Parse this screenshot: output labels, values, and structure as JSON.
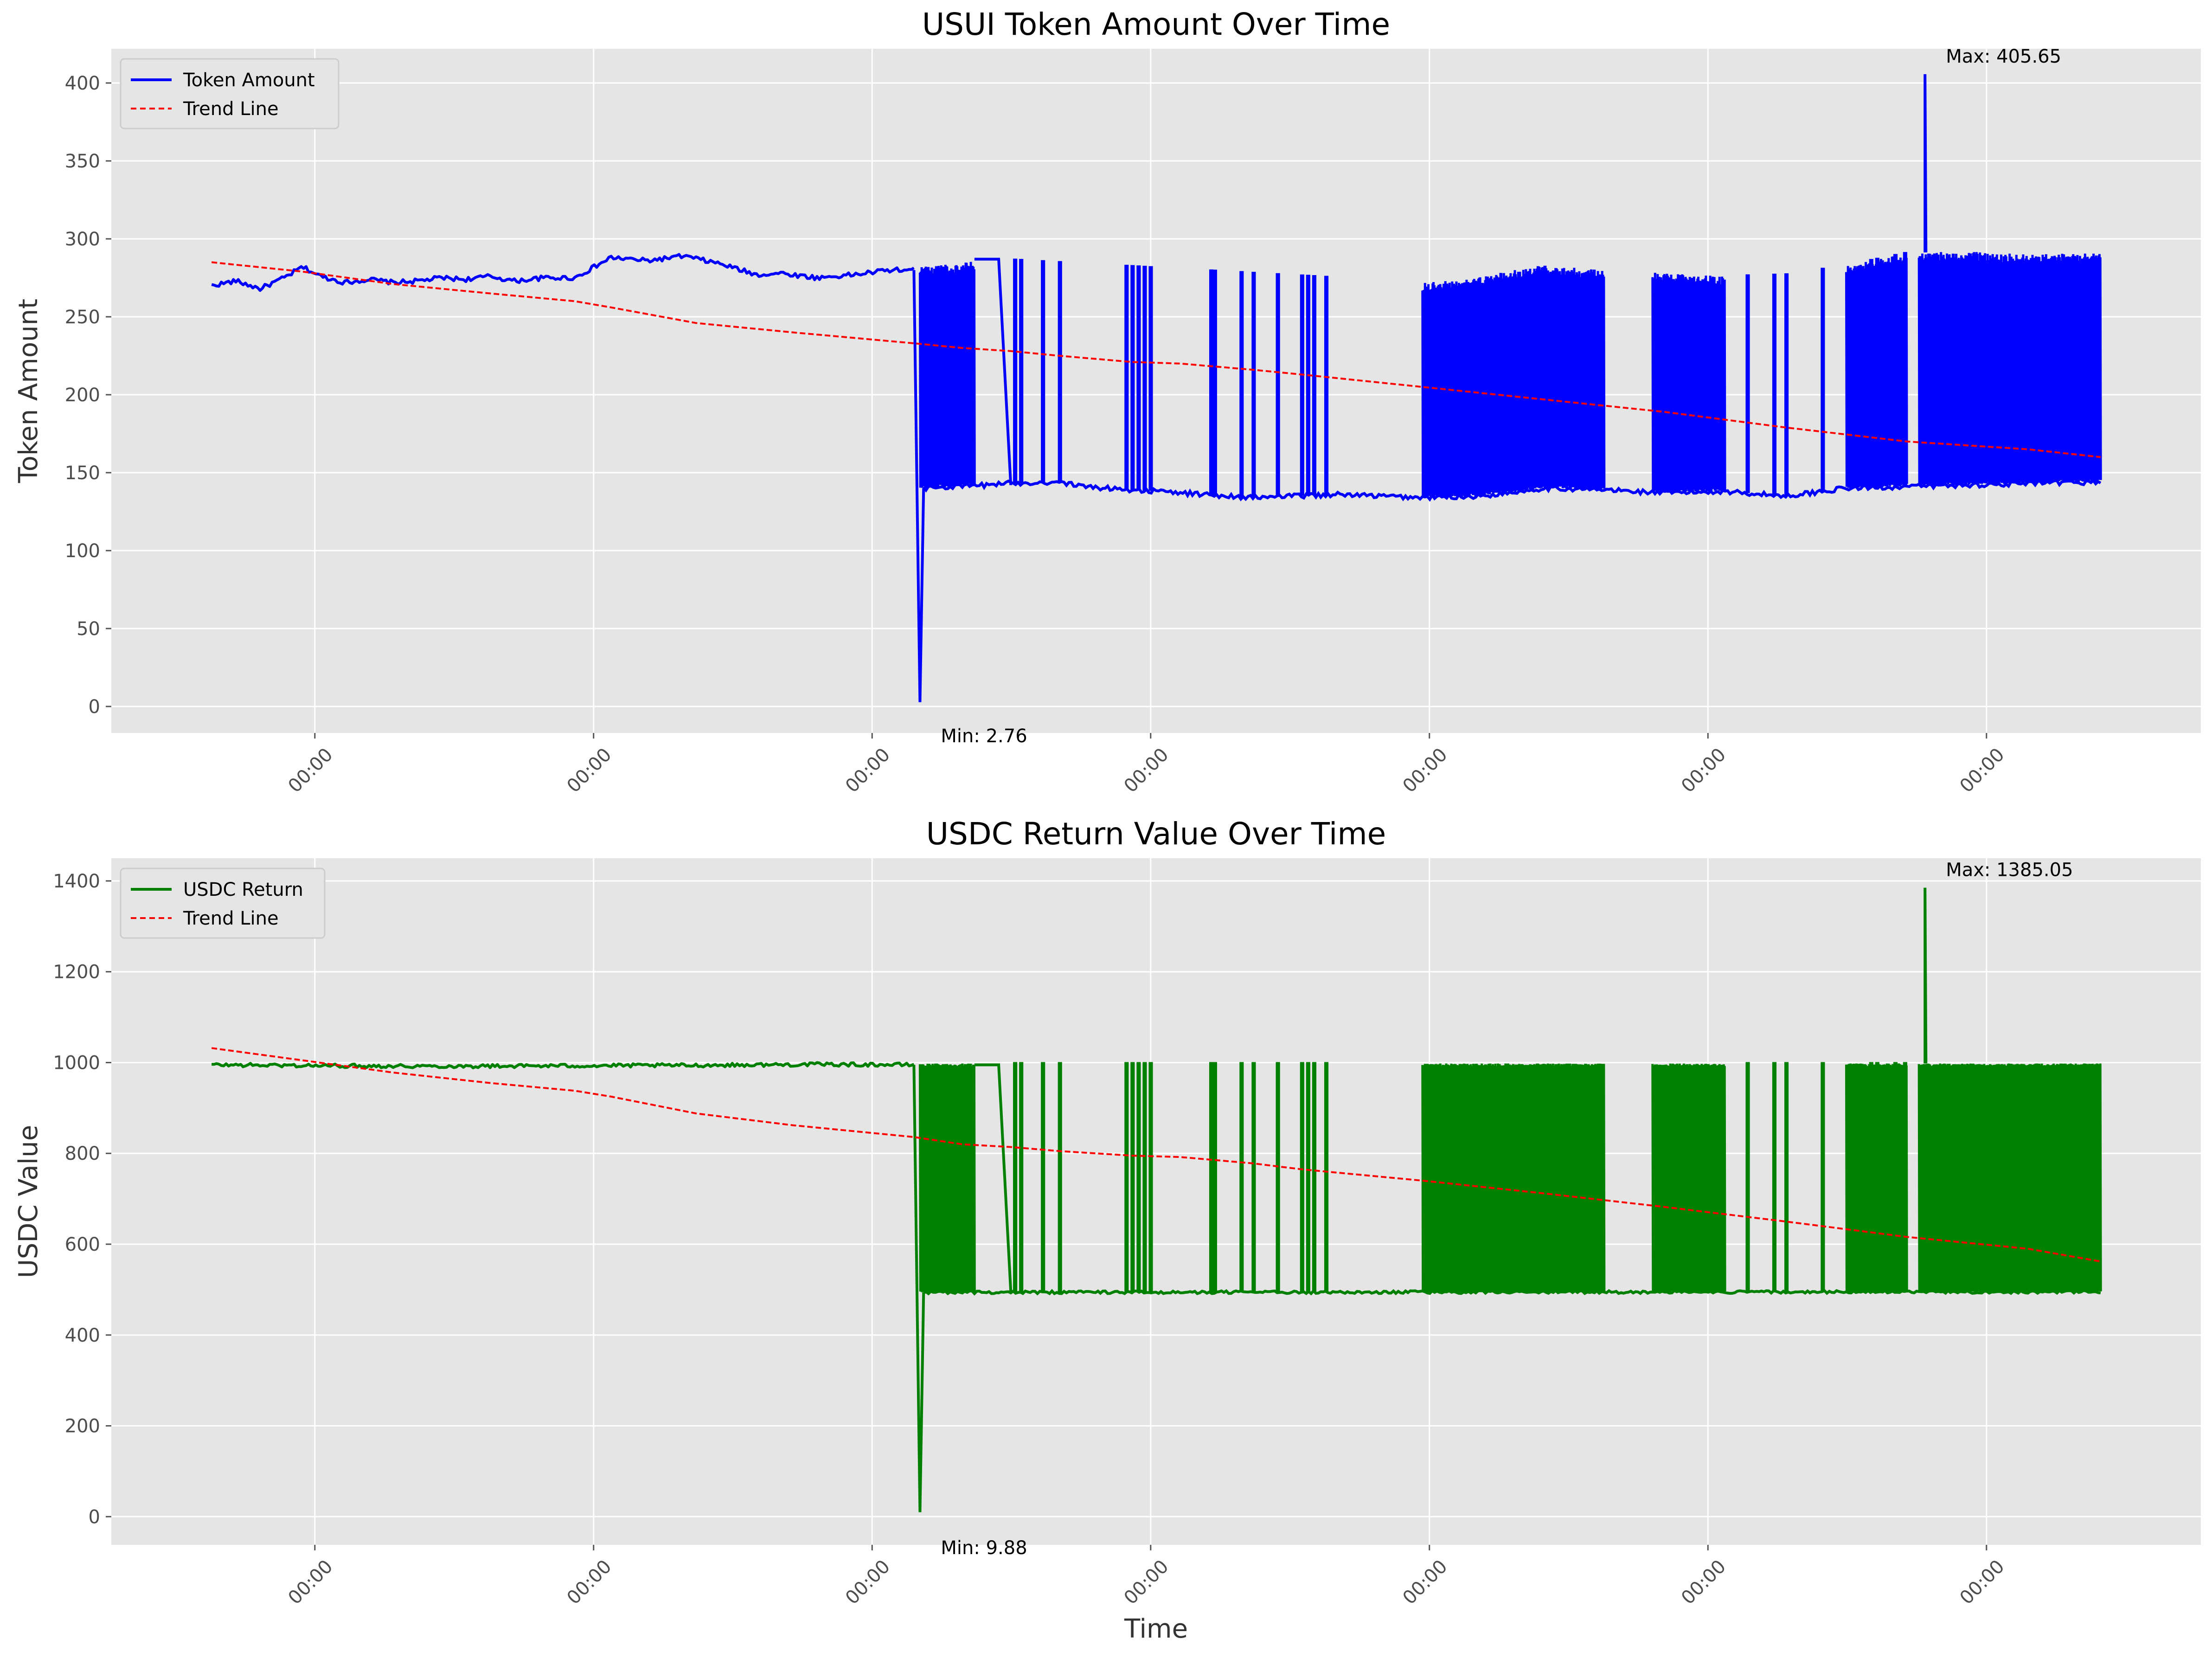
{
  "chart_data": [
    {
      "type": "line",
      "title": "USUI Token Amount Over Time",
      "xlabel": "",
      "ylabel": "Token Amount",
      "ylim": [
        -17,
        422
      ],
      "yticks": [
        0,
        50,
        100,
        150,
        200,
        250,
        300,
        350,
        400
      ],
      "xticks": [
        "00:00",
        "00:00",
        "00:00",
        "00:00",
        "00:00",
        "00:00",
        "00:00"
      ],
      "grid": true,
      "legend": "top-left",
      "series": [
        {
          "name": "Token Amount",
          "color": "#0000ff",
          "style": "solid",
          "base": [
            [
              0,
              270
            ],
            [
              20,
              273
            ],
            [
              40,
              268
            ],
            [
              60,
              275
            ],
            [
              75,
              282
            ],
            [
              90,
              276
            ],
            [
              110,
              272
            ],
            [
              130,
              274
            ],
            [
              150,
              272
            ],
            [
              170,
              273
            ],
            [
              190,
              275
            ],
            [
              210,
              274
            ],
            [
              230,
              276
            ],
            [
              250,
              273
            ],
            [
              275,
              275
            ],
            [
              300,
              275
            ],
            [
              330,
              288
            ],
            [
              360,
              286
            ],
            [
              390,
              289
            ],
            [
              420,
              284
            ],
            [
              450,
              277
            ],
            [
              470,
              278
            ],
            [
              500,
              275
            ],
            [
              530,
              277
            ],
            [
              560,
              280
            ],
            [
              580,
              280
            ]
          ],
          "low_band": [
            [
              585,
              140
            ],
            [
              640,
              142
            ],
            [
              650,
              143
            ],
            [
              700,
              144
            ],
            [
              720,
              141
            ],
            [
              800,
              137
            ],
            [
              860,
              134
            ],
            [
              930,
              136
            ],
            [
              1000,
              134
            ],
            [
              1050,
              135
            ],
            [
              1100,
              140
            ],
            [
              1150,
              139
            ],
            [
              1200,
              137
            ],
            [
              1250,
              138
            ],
            [
              1300,
              135
            ],
            [
              1350,
              140
            ],
            [
              1400,
              141
            ],
            [
              1450,
              142
            ],
            [
              1500,
              143
            ],
            [
              1560,
              144
            ]
          ],
          "high_band": [
            [
              585,
              282
            ],
            [
              650,
              287
            ],
            [
              1000,
              272
            ],
            [
              1040,
              274
            ],
            [
              1080,
              281
            ],
            [
              1100,
              283
            ],
            [
              1150,
              280
            ],
            [
              1200,
              278
            ],
            [
              1250,
              276
            ],
            [
              1300,
              277
            ],
            [
              1350,
              283
            ],
            [
              1400,
              291
            ],
            [
              1450,
              292
            ],
            [
              1500,
              290
            ],
            [
              1560,
              291
            ]
          ],
          "transition": [
            [
              630,
              287
            ],
            [
              650,
              287
            ],
            [
              660,
              142
            ]
          ],
          "dense_ranges": [
            [
              585,
              630
            ],
            [
              1000,
              1150
            ],
            [
              1190,
              1250
            ],
            [
              1350,
              1400
            ],
            [
              1410,
              1560
            ]
          ],
          "spikes": [
            663,
            668,
            686,
            700,
            755,
            760,
            765,
            770,
            775,
            825,
            828,
            850,
            860,
            880,
            900,
            905,
            910,
            920,
            1268,
            1290,
            1300,
            1330,
            1370,
            1375,
            1390,
            1398
          ],
          "min_point": [
            585,
            2.76
          ],
          "max_point": [
            1415,
            405.65
          ]
        },
        {
          "name": "Trend Line",
          "color": "#ff0000",
          "style": "dashed",
          "points": [
            [
              0,
              285
            ],
            [
              75,
              279
            ],
            [
              150,
              271
            ],
            [
              230,
              265
            ],
            [
              300,
              260
            ],
            [
              330,
              256
            ],
            [
              400,
              246
            ],
            [
              480,
              240
            ],
            [
              580,
              233
            ],
            [
              620,
              230
            ],
            [
              660,
              228
            ],
            [
              700,
              225
            ],
            [
              760,
              221
            ],
            [
              800,
              220
            ],
            [
              860,
              216
            ],
            [
              900,
              213
            ],
            [
              1000,
              205
            ],
            [
              1100,
              197
            ],
            [
              1200,
              189
            ],
            [
              1300,
              179
            ],
            [
              1400,
              170
            ],
            [
              1500,
              165
            ],
            [
              1560,
              160
            ]
          ]
        }
      ],
      "annotations": [
        {
          "text": "Min: 2.76",
          "anchor": "min_point"
        },
        {
          "text": "Max: 405.65",
          "anchor": "max_point"
        }
      ],
      "legend_entries": [
        "Token Amount",
        "Trend Line"
      ]
    },
    {
      "type": "line",
      "title": "USDC Return Value Over Time",
      "xlabel": "Time",
      "ylabel": "USDC Value",
      "ylim": [
        -62,
        1450
      ],
      "yticks": [
        0,
        200,
        400,
        600,
        800,
        1000,
        1200,
        1400
      ],
      "xticks": [
        "00:00",
        "00:00",
        "00:00",
        "00:00",
        "00:00",
        "00:00",
        "00:00"
      ],
      "grid": true,
      "legend": "top-left",
      "series": [
        {
          "name": "USDC Return",
          "color": "#008000",
          "style": "solid",
          "base": [
            [
              0,
              995
            ],
            [
              100,
              993
            ],
            [
              200,
              992
            ],
            [
              300,
              993
            ],
            [
              400,
              994
            ],
            [
              500,
              996
            ],
            [
              580,
              995
            ]
          ],
          "low_band": [
            [
              585,
              494
            ],
            [
              1560,
              495
            ]
          ],
          "high_band": [
            [
              585,
              998
            ],
            [
              1560,
              998
            ]
          ],
          "transition": [
            [
              630,
              995
            ],
            [
              650,
              995
            ],
            [
              660,
              496
            ]
          ],
          "dense_ranges": [
            [
              585,
              630
            ],
            [
              1000,
              1150
            ],
            [
              1190,
              1250
            ],
            [
              1350,
              1400
            ],
            [
              1410,
              1560
            ]
          ],
          "spikes": [
            663,
            668,
            686,
            700,
            755,
            760,
            765,
            770,
            775,
            825,
            828,
            850,
            860,
            880,
            900,
            905,
            910,
            920,
            1268,
            1290,
            1300,
            1330,
            1370,
            1375,
            1390,
            1398
          ],
          "min_point": [
            585,
            9.88
          ],
          "max_point": [
            1415,
            1385.05
          ]
        },
        {
          "name": "Trend Line",
          "color": "#ff0000",
          "style": "dashed",
          "points": [
            [
              0,
              1032
            ],
            [
              75,
              1005
            ],
            [
              150,
              978
            ],
            [
              230,
              955
            ],
            [
              300,
              938
            ],
            [
              330,
              925
            ],
            [
              400,
              888
            ],
            [
              480,
              862
            ],
            [
              580,
              836
            ],
            [
              620,
              820
            ],
            [
              660,
              814
            ],
            [
              700,
              805
            ],
            [
              760,
              795
            ],
            [
              800,
              792
            ],
            [
              860,
              778
            ],
            [
              900,
              765
            ],
            [
              1000,
              740
            ],
            [
              1100,
              712
            ],
            [
              1200,
              682
            ],
            [
              1300,
              650
            ],
            [
              1400,
              616
            ],
            [
              1500,
              590
            ],
            [
              1560,
              562
            ]
          ]
        }
      ],
      "annotations": [
        {
          "text": "Min: 9.88",
          "anchor": "min_point"
        },
        {
          "text": "Max: 1385.05",
          "anchor": "max_point"
        }
      ],
      "legend_entries": [
        "USDC Return",
        "Trend Line"
      ]
    }
  ]
}
